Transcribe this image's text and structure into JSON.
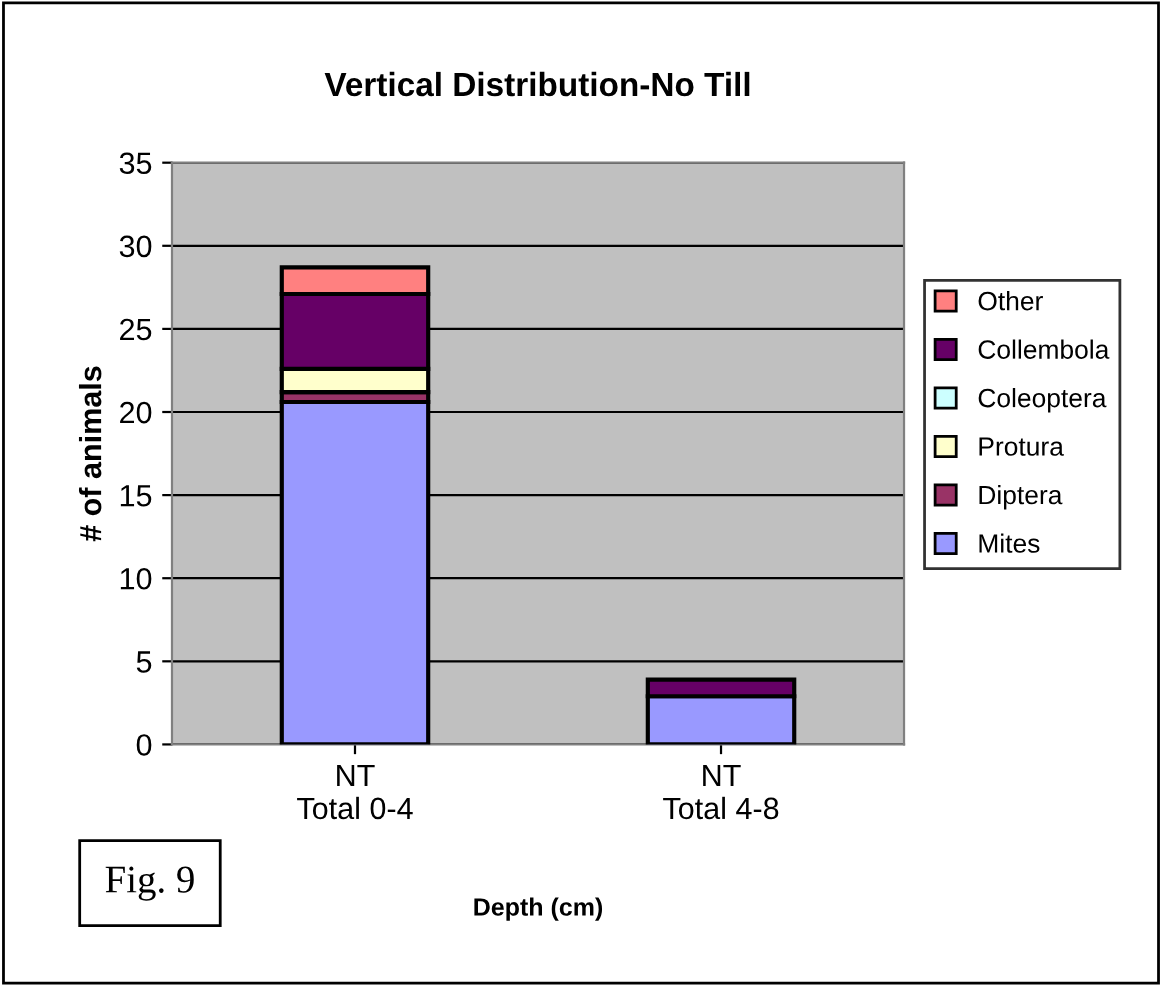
{
  "chart_data": {
    "type": "bar",
    "title": "Vertical Distribution-No Till",
    "xlabel": "Depth (cm)",
    "ylabel": "# of animals",
    "categories": [
      "NT\nTotal 0-4",
      "NT\nTotal 4-8"
    ],
    "stacked": true,
    "series": [
      {
        "name": "Mites",
        "color": "#9999ff",
        "values": [
          20.6,
          2.9
        ]
      },
      {
        "name": "Diptera",
        "color": "#993366",
        "values": [
          0.6,
          null
        ]
      },
      {
        "name": "Protura",
        "color": "#ffffcc",
        "values": [
          1.4,
          null
        ]
      },
      {
        "name": "Coleoptera",
        "color": "#ccffff",
        "values": [
          null,
          null
        ]
      },
      {
        "name": "Collembola",
        "color": "#660066",
        "values": [
          4.5,
          1.0
        ]
      },
      {
        "name": "Other",
        "color": "#ff8080",
        "values": [
          1.6,
          null
        ]
      }
    ],
    "ylim": [
      0,
      35
    ],
    "yticks": [
      0,
      5,
      10,
      15,
      20,
      25,
      30,
      35
    ],
    "grid": "y",
    "legend": "right",
    "annotations": [
      "Fig. 9"
    ]
  }
}
